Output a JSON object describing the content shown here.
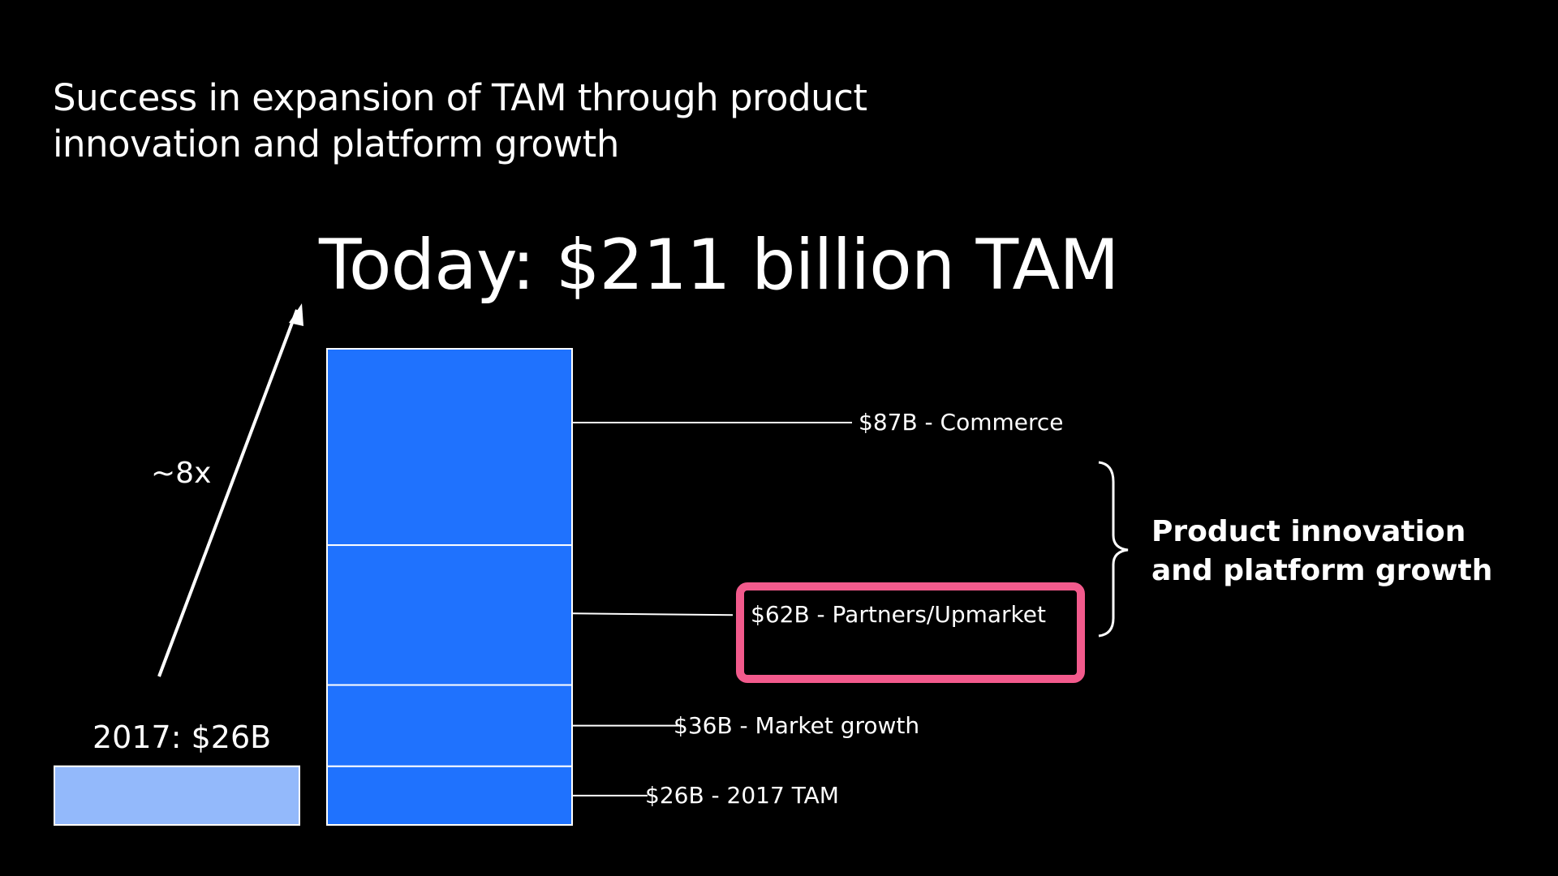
{
  "subtitle": {
    "line1": "Success in expansion of TAM through product",
    "line2": "innovation and platform growth"
  },
  "headline": "Today: $211 billion TAM",
  "multiplier_label": "~8x",
  "label_2017": "2017: $26B",
  "bracket_label": {
    "line1": "Product innovation",
    "line2": "and platform growth"
  },
  "colors": {
    "background": "#000000",
    "bar_today": "#1f72fe",
    "bar_2017": "#93b9fb",
    "highlight": "#f25a8c",
    "text": "#ffffff"
  },
  "chart_data": {
    "type": "bar",
    "title": "Today: $211 billion TAM",
    "categories": [
      "2017",
      "Today"
    ],
    "series": [
      {
        "name": "2017 TAM",
        "values": [
          26,
          26
        ]
      },
      {
        "name": "Market growth",
        "values": [
          0,
          36
        ]
      },
      {
        "name": "Partners/Upmarket",
        "values": [
          0,
          62
        ]
      },
      {
        "name": "Commerce",
        "values": [
          0,
          87
        ]
      }
    ],
    "totals": [
      26,
      211
    ],
    "unit": "$B",
    "segment_labels": [
      "$26B - 2017 TAM",
      "$36B - Market growth",
      "$62B - Partners/Upmarket",
      "$87B - Commerce"
    ],
    "highlighted_segment": "$62B - Partners/Upmarket",
    "growth_multiple": "~8x"
  }
}
